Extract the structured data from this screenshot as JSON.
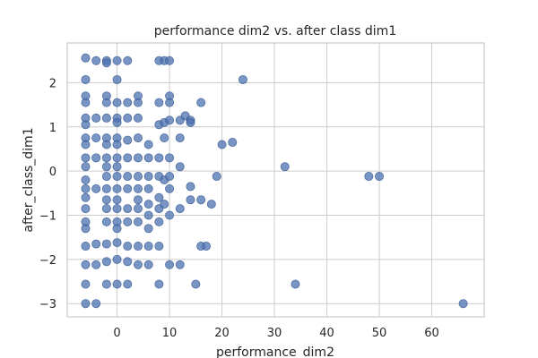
{
  "chart_data": {
    "type": "scatter",
    "title": "performance dim2 vs. after class dim1",
    "xlabel": "performance_dim2",
    "ylabel": "after_class_dim1",
    "xlim": [
      -9.5,
      70
    ],
    "ylim": [
      -3.3,
      2.9
    ],
    "xticks": [
      0,
      10,
      20,
      30,
      40,
      50,
      60
    ],
    "yticks": [
      -3,
      -2,
      -1,
      0,
      1,
      2
    ],
    "grid": true,
    "color": "#4c72b0",
    "points": [
      [
        -6,
        2.56
      ],
      [
        -6,
        2.07
      ],
      [
        -6,
        1.7
      ],
      [
        -6,
        1.55
      ],
      [
        -6,
        1.2
      ],
      [
        -6,
        1.05
      ],
      [
        -6,
        0.75
      ],
      [
        -6,
        0.6
      ],
      [
        -6,
        0.3
      ],
      [
        -6,
        0.1
      ],
      [
        -6,
        -0.2
      ],
      [
        -6,
        -0.4
      ],
      [
        -6,
        -0.6
      ],
      [
        -6,
        -0.85
      ],
      [
        -6,
        -1.15
      ],
      [
        -6,
        -1.3
      ],
      [
        -6,
        -1.7
      ],
      [
        -6,
        -2.12
      ],
      [
        -6,
        -2.56
      ],
      [
        -6,
        -3.0
      ],
      [
        -4,
        2.5
      ],
      [
        -4,
        1.2
      ],
      [
        -4,
        0.75
      ],
      [
        -4,
        0.3
      ],
      [
        -4,
        -0.4
      ],
      [
        -4,
        -1.65
      ],
      [
        -4,
        -2.12
      ],
      [
        -4,
        -3.0
      ],
      [
        -2,
        2.5
      ],
      [
        -2,
        2.45
      ],
      [
        -2,
        1.7
      ],
      [
        -2,
        1.55
      ],
      [
        -2,
        1.2
      ],
      [
        -2,
        0.75
      ],
      [
        -2,
        0.6
      ],
      [
        -2,
        0.3
      ],
      [
        -2,
        0.1
      ],
      [
        -2,
        -0.12
      ],
      [
        -2,
        -0.4
      ],
      [
        -2,
        -0.65
      ],
      [
        -2,
        -0.85
      ],
      [
        -2,
        -1.15
      ],
      [
        -2,
        -1.65
      ],
      [
        -2,
        -2.05
      ],
      [
        -2,
        -2.56
      ],
      [
        0,
        2.5
      ],
      [
        0,
        2.07
      ],
      [
        0,
        1.55
      ],
      [
        0,
        1.2
      ],
      [
        0,
        1.1
      ],
      [
        0,
        0.75
      ],
      [
        0,
        0.6
      ],
      [
        0,
        0.3
      ],
      [
        0,
        0.1
      ],
      [
        0,
        -0.12
      ],
      [
        0,
        -0.4
      ],
      [
        0,
        -0.65
      ],
      [
        0,
        -0.85
      ],
      [
        0,
        -1.15
      ],
      [
        0,
        -1.3
      ],
      [
        0,
        -1.62
      ],
      [
        0,
        -2.0
      ],
      [
        0,
        -2.56
      ],
      [
        2,
        2.5
      ],
      [
        2,
        1.55
      ],
      [
        2,
        1.2
      ],
      [
        2,
        0.7
      ],
      [
        2,
        0.3
      ],
      [
        2,
        -0.12
      ],
      [
        2,
        -0.4
      ],
      [
        2,
        -0.85
      ],
      [
        2,
        -1.15
      ],
      [
        2,
        -1.7
      ],
      [
        2,
        -2.05
      ],
      [
        2,
        -2.56
      ],
      [
        4,
        1.7
      ],
      [
        4,
        1.55
      ],
      [
        4,
        1.2
      ],
      [
        4,
        0.75
      ],
      [
        4,
        0.3
      ],
      [
        4,
        -0.12
      ],
      [
        4,
        -0.4
      ],
      [
        4,
        -0.65
      ],
      [
        4,
        -0.85
      ],
      [
        4,
        -1.15
      ],
      [
        4,
        -1.7
      ],
      [
        4,
        -2.12
      ],
      [
        6,
        0.6
      ],
      [
        6,
        0.3
      ],
      [
        6,
        -0.12
      ],
      [
        6,
        -0.4
      ],
      [
        6,
        -0.75
      ],
      [
        6,
        -1.0
      ],
      [
        6,
        -1.3
      ],
      [
        6,
        -1.7
      ],
      [
        6,
        -2.12
      ],
      [
        8,
        2.5
      ],
      [
        8,
        1.55
      ],
      [
        8,
        1.05
      ],
      [
        8,
        0.3
      ],
      [
        8,
        -0.12
      ],
      [
        8,
        -0.6
      ],
      [
        8,
        -0.85
      ],
      [
        8,
        -1.15
      ],
      [
        8,
        -1.7
      ],
      [
        8,
        -2.56
      ],
      [
        9,
        2.5
      ],
      [
        9,
        1.1
      ],
      [
        9,
        0.75
      ],
      [
        9,
        -0.2
      ],
      [
        9,
        -0.75
      ],
      [
        10,
        2.5
      ],
      [
        10,
        1.7
      ],
      [
        10,
        1.55
      ],
      [
        10,
        1.15
      ],
      [
        10,
        0.3
      ],
      [
        10,
        -0.12
      ],
      [
        10,
        -0.4
      ],
      [
        10,
        -1.0
      ],
      [
        10,
        -2.12
      ],
      [
        12,
        1.15
      ],
      [
        12,
        0.75
      ],
      [
        12,
        0.1
      ],
      [
        12,
        -0.85
      ],
      [
        12,
        -2.12
      ],
      [
        13,
        1.25
      ],
      [
        14,
        1.15
      ],
      [
        14,
        1.1
      ],
      [
        14,
        -0.35
      ],
      [
        14,
        -0.65
      ],
      [
        16,
        1.55
      ],
      [
        16,
        -0.65
      ],
      [
        16,
        -1.7
      ],
      [
        17,
        -1.7
      ],
      [
        18,
        -0.75
      ],
      [
        19,
        -0.12
      ],
      [
        20,
        0.6
      ],
      [
        22,
        0.65
      ],
      [
        15,
        -2.56
      ],
      [
        24,
        2.07
      ],
      [
        32,
        0.1
      ],
      [
        34,
        -2.56
      ],
      [
        48,
        -0.12
      ],
      [
        50,
        -0.12
      ],
      [
        66,
        -3.0
      ]
    ]
  }
}
